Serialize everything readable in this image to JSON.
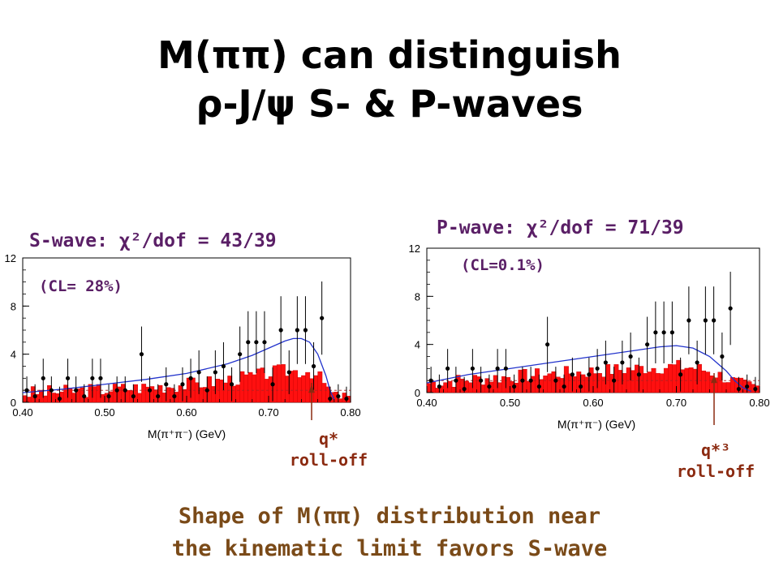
{
  "slide": {
    "title_line1": "M(ππ) can distinguish",
    "title_line2": "ρ-J/ψ S- & P-waves",
    "left_fit_label": "S-wave: χ²/dof = 43/39",
    "left_cl": "(CL= 28%)",
    "right_fit_label": "P-wave: χ²/dof = 71/39",
    "right_cl": "(CL=0.1%)",
    "left_rolloff_line1": "q*",
    "left_rolloff_line2": "roll-off",
    "right_rolloff_line1": "q*³",
    "right_rolloff_line2": "roll-off",
    "conclusion_line1": "Shape of M(ππ) distribution near",
    "conclusion_line2": "the kinematic limit favors S-wave"
  },
  "colors": {
    "data_points": "#000000",
    "fit_curve": "#2233cc",
    "histogram": "#ff0000",
    "text_fit": "#5a1f66",
    "text_conclusion": "#7a4a18"
  },
  "chart_data": [
    {
      "type": "scatter",
      "title": "",
      "xlabel": "M(π⁺π⁻) (GeV)",
      "ylabel": "",
      "xlim": [
        0.4,
        0.8
      ],
      "ylim": [
        0,
        12
      ],
      "x_ticks": [
        "0.40",
        "0.50",
        "0.60",
        "0.70",
        "0.80"
      ],
      "y_ticks": [
        "0",
        "4",
        "8",
        "12"
      ],
      "data_points": {
        "x": [
          0.405,
          0.415,
          0.425,
          0.435,
          0.445,
          0.455,
          0.465,
          0.475,
          0.485,
          0.495,
          0.505,
          0.515,
          0.525,
          0.535,
          0.545,
          0.555,
          0.565,
          0.575,
          0.585,
          0.595,
          0.605,
          0.615,
          0.625,
          0.635,
          0.645,
          0.655,
          0.665,
          0.675,
          0.685,
          0.695,
          0.705,
          0.715,
          0.725,
          0.735,
          0.745,
          0.755,
          0.765,
          0.775,
          0.785,
          0.795
        ],
        "y": [
          1.0,
          0.5,
          2.0,
          1.0,
          0.3,
          2.0,
          1.0,
          0.5,
          2.0,
          2.0,
          0.5,
          1.0,
          1.0,
          0.5,
          4.0,
          1.0,
          0.5,
          1.5,
          0.5,
          1.5,
          2.0,
          2.5,
          1.0,
          2.5,
          3.0,
          1.5,
          4.0,
          5.0,
          5.0,
          5.0,
          1.5,
          6.0,
          2.5,
          6.0,
          6.0,
          3.0,
          7.0,
          0.3,
          0.5,
          0.3
        ]
      },
      "fit_curve": {
        "x": [
          0.4,
          0.45,
          0.5,
          0.55,
          0.6,
          0.65,
          0.68,
          0.7,
          0.72,
          0.73,
          0.74,
          0.75,
          0.76,
          0.77,
          0.775,
          0.78
        ],
        "y": [
          0.8,
          1.1,
          1.5,
          1.9,
          2.4,
          3.2,
          3.9,
          4.5,
          5.1,
          5.3,
          5.3,
          5.0,
          4.0,
          2.2,
          1.0,
          0.2
        ]
      },
      "annotation": "q* roll-off"
    },
    {
      "type": "scatter",
      "title": "",
      "xlabel": "M(π⁺π⁻) (GeV)",
      "ylabel": "",
      "xlim": [
        0.4,
        0.8
      ],
      "ylim": [
        0,
        12
      ],
      "x_ticks": [
        "0.40",
        "0.50",
        "0.60",
        "0.70",
        "0.80"
      ],
      "y_ticks": [
        "0",
        "4",
        "8",
        "12"
      ],
      "data_points": {
        "x": [
          0.405,
          0.415,
          0.425,
          0.435,
          0.445,
          0.455,
          0.465,
          0.475,
          0.485,
          0.495,
          0.505,
          0.515,
          0.525,
          0.535,
          0.545,
          0.555,
          0.565,
          0.575,
          0.585,
          0.595,
          0.605,
          0.615,
          0.625,
          0.635,
          0.645,
          0.655,
          0.665,
          0.675,
          0.685,
          0.695,
          0.705,
          0.715,
          0.725,
          0.735,
          0.745,
          0.755,
          0.765,
          0.775,
          0.785,
          0.795
        ],
        "y": [
          1.0,
          0.5,
          2.0,
          1.0,
          0.3,
          2.0,
          1.0,
          0.5,
          2.0,
          2.0,
          0.5,
          1.0,
          1.0,
          0.5,
          4.0,
          1.0,
          0.5,
          1.5,
          0.5,
          1.5,
          2.0,
          2.5,
          1.0,
          2.5,
          3.0,
          1.5,
          4.0,
          5.0,
          5.0,
          5.0,
          1.5,
          6.0,
          2.5,
          6.0,
          6.0,
          3.0,
          7.0,
          0.3,
          0.5,
          0.3
        ]
      },
      "fit_curve": {
        "x": [
          0.4,
          0.45,
          0.5,
          0.55,
          0.6,
          0.65,
          0.68,
          0.7,
          0.72,
          0.74,
          0.76,
          0.77,
          0.78,
          0.79
        ],
        "y": [
          0.8,
          1.5,
          2.0,
          2.5,
          3.0,
          3.5,
          3.8,
          3.9,
          3.7,
          3.0,
          1.8,
          1.0,
          0.4,
          0.1
        ]
      },
      "annotation": "q*³ roll-off"
    }
  ]
}
